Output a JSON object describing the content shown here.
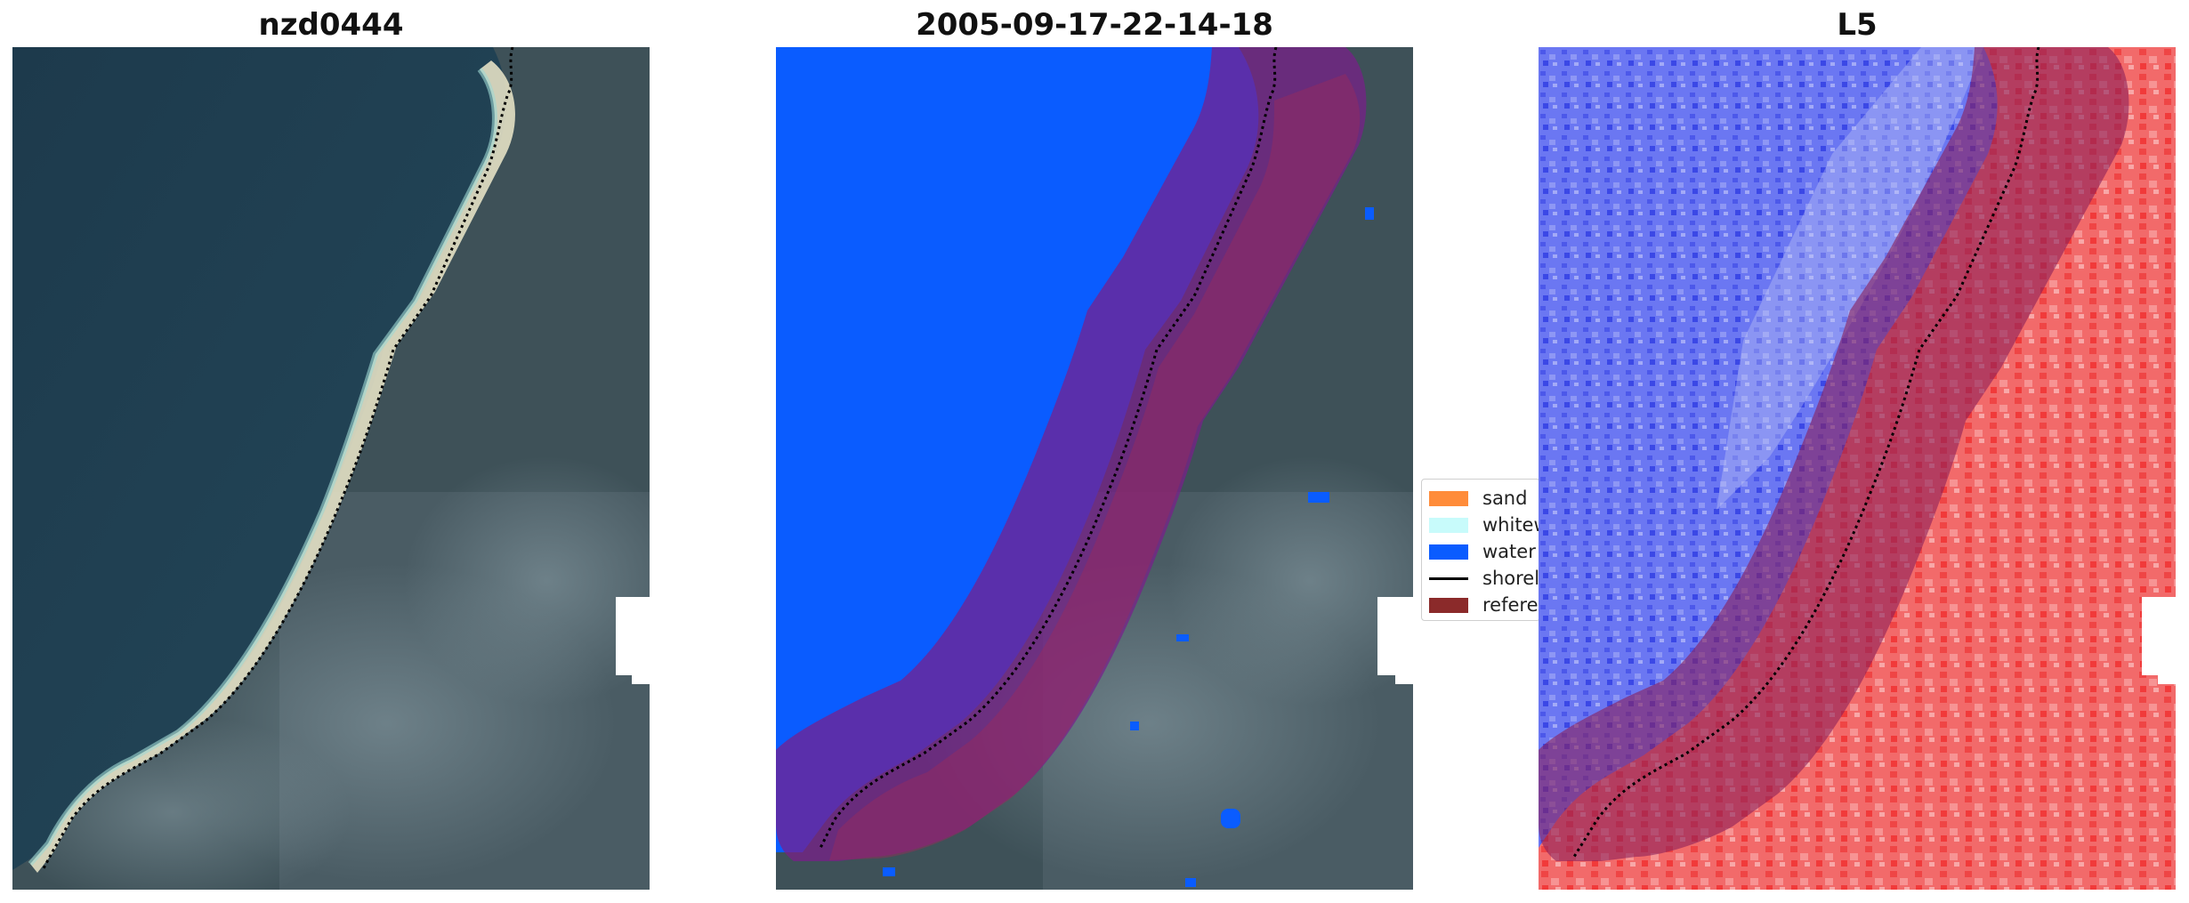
{
  "panels": [
    {
      "title": "nzd0444"
    },
    {
      "title": "2005-09-17-22-14-18"
    },
    {
      "title": "L5"
    }
  ],
  "legend": {
    "items": [
      {
        "label": "sand",
        "color": "#ff8c3a",
        "kind": "patch"
      },
      {
        "label": "whitewater",
        "color": "#c8fbfb",
        "kind": "patch"
      },
      {
        "label": "water",
        "color": "#0a5cff",
        "kind": "patch"
      },
      {
        "label": "shoreline",
        "color": "#000000",
        "kind": "line"
      },
      {
        "label": "reference shoreline buffer",
        "color": "#8b2a2a",
        "kind": "patch"
      }
    ]
  },
  "colors": {
    "ocean": "#1f3d4f",
    "land": "#3f5257",
    "sand_strip": "#e7e4c9",
    "water_class": "#0a5cff",
    "buffer_overlay": "#7a1f6a",
    "index_water": "#5f6bf0",
    "index_land": "#f05a5a"
  }
}
